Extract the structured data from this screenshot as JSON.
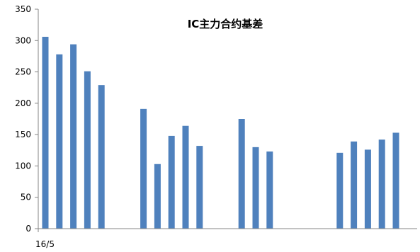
{
  "chart_data": {
    "type": "bar",
    "title": "IC主力合约基差",
    "xlabel": "",
    "ylabel": "",
    "ylim": [
      0,
      350
    ],
    "yticks": [
      0,
      50,
      100,
      150,
      200,
      250,
      300,
      350
    ],
    "x_tick_labels": [
      "16/5"
    ],
    "grid": false,
    "legend": "none",
    "bar_color": "#4F81BD",
    "axis_color": "#868686",
    "slot_count": 27,
    "bars": [
      {
        "slot": 0,
        "value": 306
      },
      {
        "slot": 1,
        "value": 278
      },
      {
        "slot": 2,
        "value": 294
      },
      {
        "slot": 3,
        "value": 251
      },
      {
        "slot": 4,
        "value": 229
      },
      {
        "slot": 7,
        "value": 191
      },
      {
        "slot": 8,
        "value": 103
      },
      {
        "slot": 9,
        "value": 148
      },
      {
        "slot": 10,
        "value": 164
      },
      {
        "slot": 11,
        "value": 132
      },
      {
        "slot": 14,
        "value": 175
      },
      {
        "slot": 15,
        "value": 130
      },
      {
        "slot": 16,
        "value": 123
      },
      {
        "slot": 21,
        "value": 121
      },
      {
        "slot": 22,
        "value": 139
      },
      {
        "slot": 23,
        "value": 126
      },
      {
        "slot": 24,
        "value": 142
      },
      {
        "slot": 25,
        "value": 153
      }
    ]
  }
}
